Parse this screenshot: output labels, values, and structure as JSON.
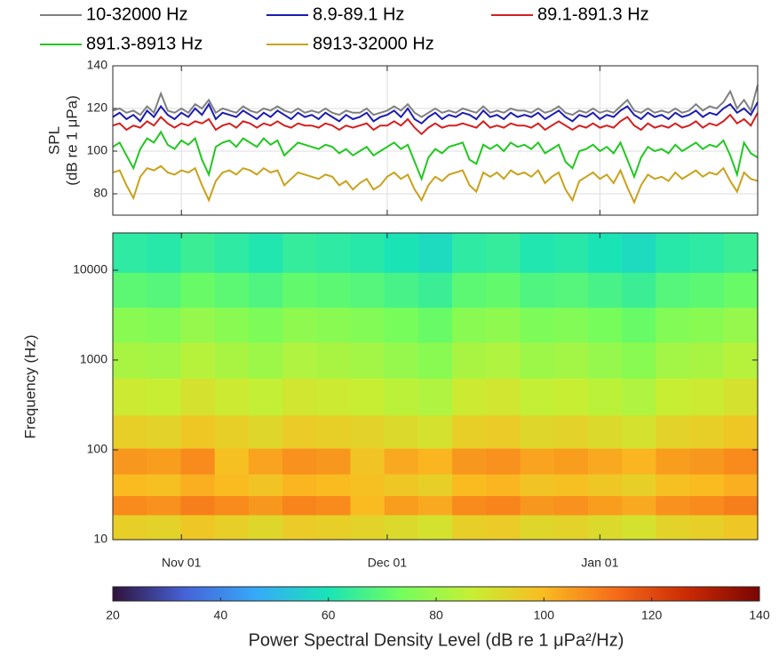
{
  "chart_data": [
    {
      "type": "line",
      "ylabel": [
        "SPL",
        "(dB re 1 μPa)"
      ],
      "ylim": [
        70,
        140
      ],
      "yticks": [
        80,
        100,
        120,
        140
      ],
      "grid": true,
      "categories": [
        null,
        null,
        null,
        null,
        null,
        null,
        null,
        null,
        null,
        null,
        "Nov 01",
        null,
        null,
        null,
        null,
        null,
        null,
        null,
        null,
        null,
        null,
        null,
        null,
        null,
        null,
        null,
        null,
        null,
        null,
        null,
        null,
        null,
        null,
        null,
        null,
        null,
        null,
        null,
        null,
        null,
        "Dec 01",
        null,
        null,
        null,
        null,
        null,
        null,
        null,
        null,
        null,
        null,
        null,
        null,
        null,
        null,
        null,
        null,
        null,
        null,
        null,
        null,
        null,
        null,
        null,
        null,
        null,
        null,
        null,
        null,
        null,
        null,
        "Jan 01",
        null,
        null,
        null,
        null,
        null,
        null,
        null,
        null,
        null,
        null,
        null,
        null,
        null,
        null,
        null,
        null,
        null,
        null,
        null,
        null,
        null,
        null,
        null
      ],
      "series": [
        {
          "name": "10-32000 Hz",
          "color": "#808080",
          "values": [
            119,
            120,
            118,
            119,
            117,
            121,
            118,
            127,
            119,
            118,
            120,
            118,
            122,
            120,
            124,
            118,
            120,
            119,
            118,
            121,
            119,
            118,
            120,
            119,
            121,
            119,
            118,
            120,
            118,
            119,
            118,
            120,
            118,
            117,
            119,
            118,
            118,
            120,
            117,
            118,
            119,
            121,
            119,
            122,
            118,
            116,
            118,
            120,
            118,
            119,
            118,
            120,
            119,
            118,
            121,
            118,
            119,
            118,
            120,
            119,
            119,
            118,
            120,
            118,
            119,
            121,
            118,
            117,
            119,
            118,
            120,
            118,
            119,
            118,
            121,
            124,
            119,
            118,
            120,
            118,
            119,
            118,
            120,
            118,
            119,
            122,
            119,
            121,
            120,
            123,
            128,
            120,
            124,
            119,
            131
          ]
        },
        {
          "name": "8.9-89.1 Hz",
          "color": "#1c1cb0",
          "values": [
            116,
            118,
            115,
            117,
            114,
            119,
            116,
            121,
            117,
            115,
            118,
            116,
            120,
            117,
            122,
            115,
            118,
            117,
            116,
            119,
            117,
            115,
            118,
            116,
            119,
            117,
            115,
            118,
            116,
            117,
            115,
            118,
            116,
            114,
            117,
            115,
            116,
            118,
            114,
            116,
            117,
            119,
            116,
            120,
            115,
            113,
            116,
            118,
            115,
            117,
            116,
            118,
            117,
            115,
            119,
            116,
            117,
            115,
            118,
            116,
            117,
            116,
            118,
            115,
            117,
            119,
            116,
            114,
            117,
            116,
            118,
            115,
            117,
            116,
            119,
            121,
            117,
            115,
            118,
            116,
            117,
            115,
            118,
            116,
            117,
            119,
            116,
            118,
            117,
            120,
            122,
            118,
            120,
            117,
            123
          ]
        },
        {
          "name": "89.1-891.3 Hz",
          "color": "#d42020",
          "values": [
            112,
            113,
            110,
            112,
            111,
            114,
            112,
            116,
            113,
            111,
            113,
            112,
            114,
            113,
            115,
            110,
            112,
            113,
            111,
            114,
            113,
            111,
            113,
            112,
            114,
            112,
            111,
            113,
            112,
            112,
            111,
            113,
            112,
            110,
            112,
            111,
            112,
            113,
            110,
            112,
            112,
            114,
            112,
            115,
            111,
            108,
            111,
            113,
            111,
            112,
            112,
            113,
            112,
            111,
            114,
            111,
            112,
            111,
            113,
            112,
            112,
            111,
            113,
            110,
            112,
            114,
            112,
            110,
            112,
            111,
            113,
            111,
            112,
            111,
            114,
            116,
            112,
            110,
            113,
            111,
            112,
            111,
            113,
            111,
            112,
            114,
            111,
            113,
            112,
            114,
            117,
            113,
            115,
            112,
            118
          ]
        },
        {
          "name": "891.3-8913 Hz",
          "color": "#22c722",
          "values": [
            102,
            104,
            98,
            92,
            101,
            106,
            104,
            109,
            103,
            101,
            105,
            103,
            106,
            96,
            89,
            102,
            104,
            105,
            102,
            106,
            104,
            102,
            106,
            103,
            105,
            98,
            101,
            104,
            103,
            102,
            101,
            103,
            102,
            99,
            101,
            98,
            100,
            102,
            98,
            100,
            102,
            104,
            101,
            103,
            95,
            87,
            97,
            101,
            99,
            102,
            103,
            104,
            96,
            94,
            103,
            101,
            103,
            100,
            104,
            102,
            103,
            101,
            104,
            99,
            101,
            103,
            95,
            92,
            100,
            101,
            103,
            100,
            102,
            99,
            104,
            96,
            88,
            97,
            102,
            100,
            101,
            99,
            103,
            100,
            102,
            104,
            101,
            103,
            102,
            105,
            98,
            89,
            104,
            99,
            97
          ]
        },
        {
          "name": "8913-32000 Hz",
          "color": "#c9a21c",
          "values": [
            90,
            91,
            84,
            78,
            88,
            92,
            91,
            93,
            90,
            89,
            91,
            90,
            92,
            84,
            77,
            86,
            90,
            91,
            89,
            92,
            91,
            89,
            92,
            90,
            91,
            84,
            87,
            90,
            89,
            88,
            87,
            89,
            88,
            84,
            86,
            82,
            85,
            87,
            82,
            84,
            88,
            90,
            87,
            89,
            82,
            77,
            84,
            88,
            86,
            89,
            90,
            91,
            84,
            81,
            90,
            88,
            90,
            87,
            91,
            89,
            90,
            88,
            91,
            85,
            88,
            90,
            82,
            77,
            86,
            88,
            90,
            87,
            89,
            85,
            91,
            83,
            76,
            84,
            89,
            87,
            88,
            86,
            90,
            87,
            89,
            91,
            88,
            90,
            89,
            92,
            86,
            81,
            90,
            87,
            86
          ]
        }
      ]
    },
    {
      "type": "heatmap",
      "ylabel": "Frequency (Hz)",
      "log_y": true,
      "ylim": [
        10,
        26000
      ],
      "yticks": [
        10,
        100,
        1000,
        10000
      ],
      "y": [
        15,
        24,
        40,
        73,
        150,
        400,
        1000,
        2500,
        6000,
        15000
      ],
      "values": [
        [
          95,
          94,
          97,
          95,
          93,
          96,
          95,
          94,
          92,
          90,
          95,
          96,
          93,
          94,
          92,
          90,
          94,
          95,
          97
        ],
        [
          108,
          107,
          110,
          108,
          106,
          109,
          108,
          100,
          105,
          103,
          108,
          109,
          106,
          107,
          105,
          103,
          107,
          108,
          110
        ],
        [
          100,
          99,
          102,
          100,
          98,
          101,
          100,
          99,
          97,
          95,
          100,
          101,
          98,
          99,
          97,
          95,
          99,
          100,
          102
        ],
        [
          106,
          105,
          108,
          99,
          104,
          107,
          106,
          98,
          103,
          101,
          106,
          107,
          104,
          105,
          103,
          101,
          105,
          106,
          108
        ],
        [
          95,
          94,
          97,
          95,
          93,
          96,
          95,
          94,
          92,
          90,
          95,
          96,
          93,
          94,
          92,
          90,
          94,
          95,
          97
        ],
        [
          88,
          87,
          90,
          88,
          86,
          89,
          88,
          87,
          85,
          83,
          88,
          89,
          86,
          87,
          85,
          83,
          87,
          88,
          90
        ],
        [
          82,
          81,
          84,
          82,
          80,
          83,
          82,
          81,
          79,
          77,
          82,
          83,
          80,
          81,
          79,
          77,
          81,
          82,
          84
        ],
        [
          77,
          76,
          79,
          77,
          75,
          78,
          77,
          76,
          74,
          72,
          77,
          78,
          75,
          76,
          74,
          72,
          76,
          77,
          79
        ],
        [
          70,
          69,
          72,
          70,
          68,
          71,
          70,
          69,
          67,
          65,
          70,
          71,
          68,
          69,
          67,
          65,
          69,
          70,
          72
        ],
        [
          63,
          62,
          65,
          63,
          61,
          64,
          63,
          62,
          60,
          58,
          63,
          64,
          61,
          62,
          60,
          58,
          62,
          63,
          65
        ]
      ],
      "colorbar": {
        "label": "Power Spectral Density Level (dB re 1 μPa²/Hz)",
        "clim": [
          20,
          140
        ],
        "ticks": [
          20,
          40,
          60,
          80,
          100,
          120,
          140
        ],
        "colors": [
          "#30123b",
          "#4662d7",
          "#36aaf9",
          "#1ae4b6",
          "#72fe5e",
          "#c7ef34",
          "#fabb21",
          "#f66b19",
          "#ca2a04",
          "#7a0403"
        ]
      }
    }
  ]
}
